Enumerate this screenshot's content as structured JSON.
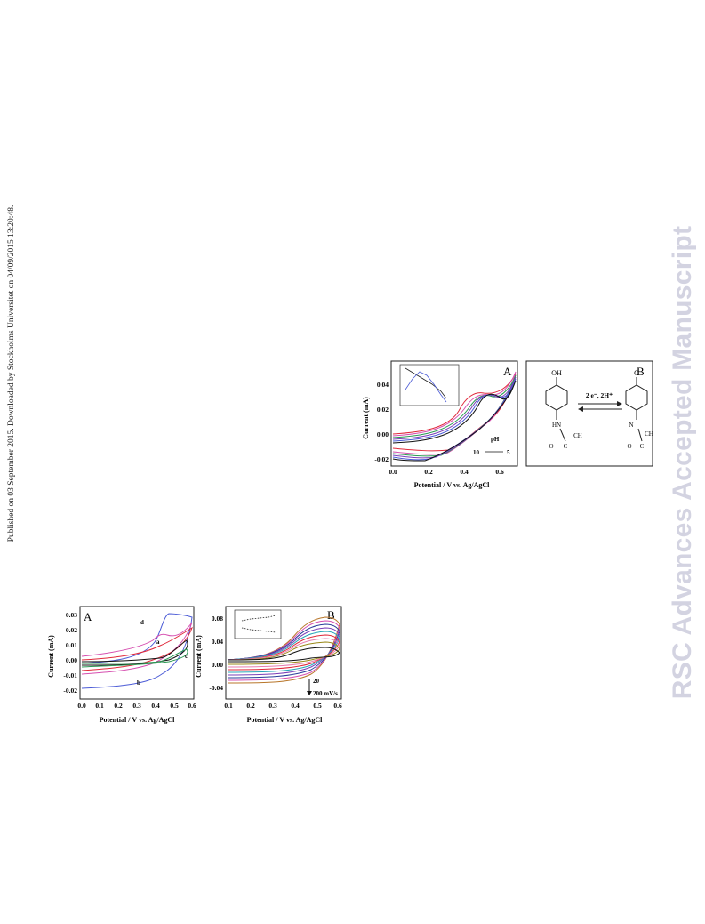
{
  "side_note": "Published on 03 September 2015. Downloaded by Stockholms Universitet on 04/09/2015 13:20:48.",
  "watermark": "RSC Advances Accepted Manuscript",
  "colors": {
    "black": "#111111",
    "red": "#e0283a",
    "blue": "#4b5bd6",
    "magenta": "#d64fb0",
    "green": "#2b9a55",
    "purple": "#7a3fb8",
    "olive": "#9a8a1a",
    "navy": "#2a3e9a",
    "pink": "#e77fb0",
    "cyan": "#28a6b8",
    "orange": "#b8762a"
  },
  "figure_top": {
    "panel_a": {
      "label": "A",
      "ylabel": "Current (mA)",
      "xlabel": "Potential / V vs. Ag/AgCl",
      "xticks": [
        "0.0",
        "0.2",
        "0.4",
        "0.6"
      ],
      "yticks": [
        "0.04",
        "0.02",
        "0.00",
        "-0.02"
      ],
      "annotation_ph": "pH",
      "annotation_10": "10",
      "annotation_5": "5"
    },
    "panel_b": {
      "label": "B",
      "reaction": "2 e⁻, 2H⁺",
      "reactant_top": "OH",
      "reactant_nh": "HN",
      "reactant_co": "O",
      "reactant_c": "C",
      "reactant_ch3": "CH",
      "product_top": "O",
      "product_n": "N",
      "product_co": "O",
      "product_c": "C",
      "product_ch3": "CH"
    }
  },
  "figure_bottom": {
    "panel_a": {
      "label": "A",
      "ylabel": "Current (mA)",
      "xlabel": "Potential / V vs. Ag/AgCl",
      "xticks": [
        "0.0",
        "0.1",
        "0.2",
        "0.3",
        "0.4",
        "0.5",
        "0.6"
      ],
      "yticks": [
        "0.03",
        "0.02",
        "0.01",
        "0.00",
        "-0.01",
        "-0.02"
      ],
      "curve_labels": [
        "d",
        "a",
        "b",
        "c"
      ]
    },
    "panel_b": {
      "label": "B",
      "ylabel": "Current (mA)",
      "xlabel": "Potential / V vs. Ag/AgCl",
      "xticks": [
        "0.1",
        "0.2",
        "0.3",
        "0.4",
        "0.5",
        "0.6"
      ],
      "yticks": [
        "0.08",
        "0.04",
        "0.00",
        "-0.04"
      ],
      "arrow_top": "20",
      "arrow_bottom": "200 mV/s"
    }
  }
}
